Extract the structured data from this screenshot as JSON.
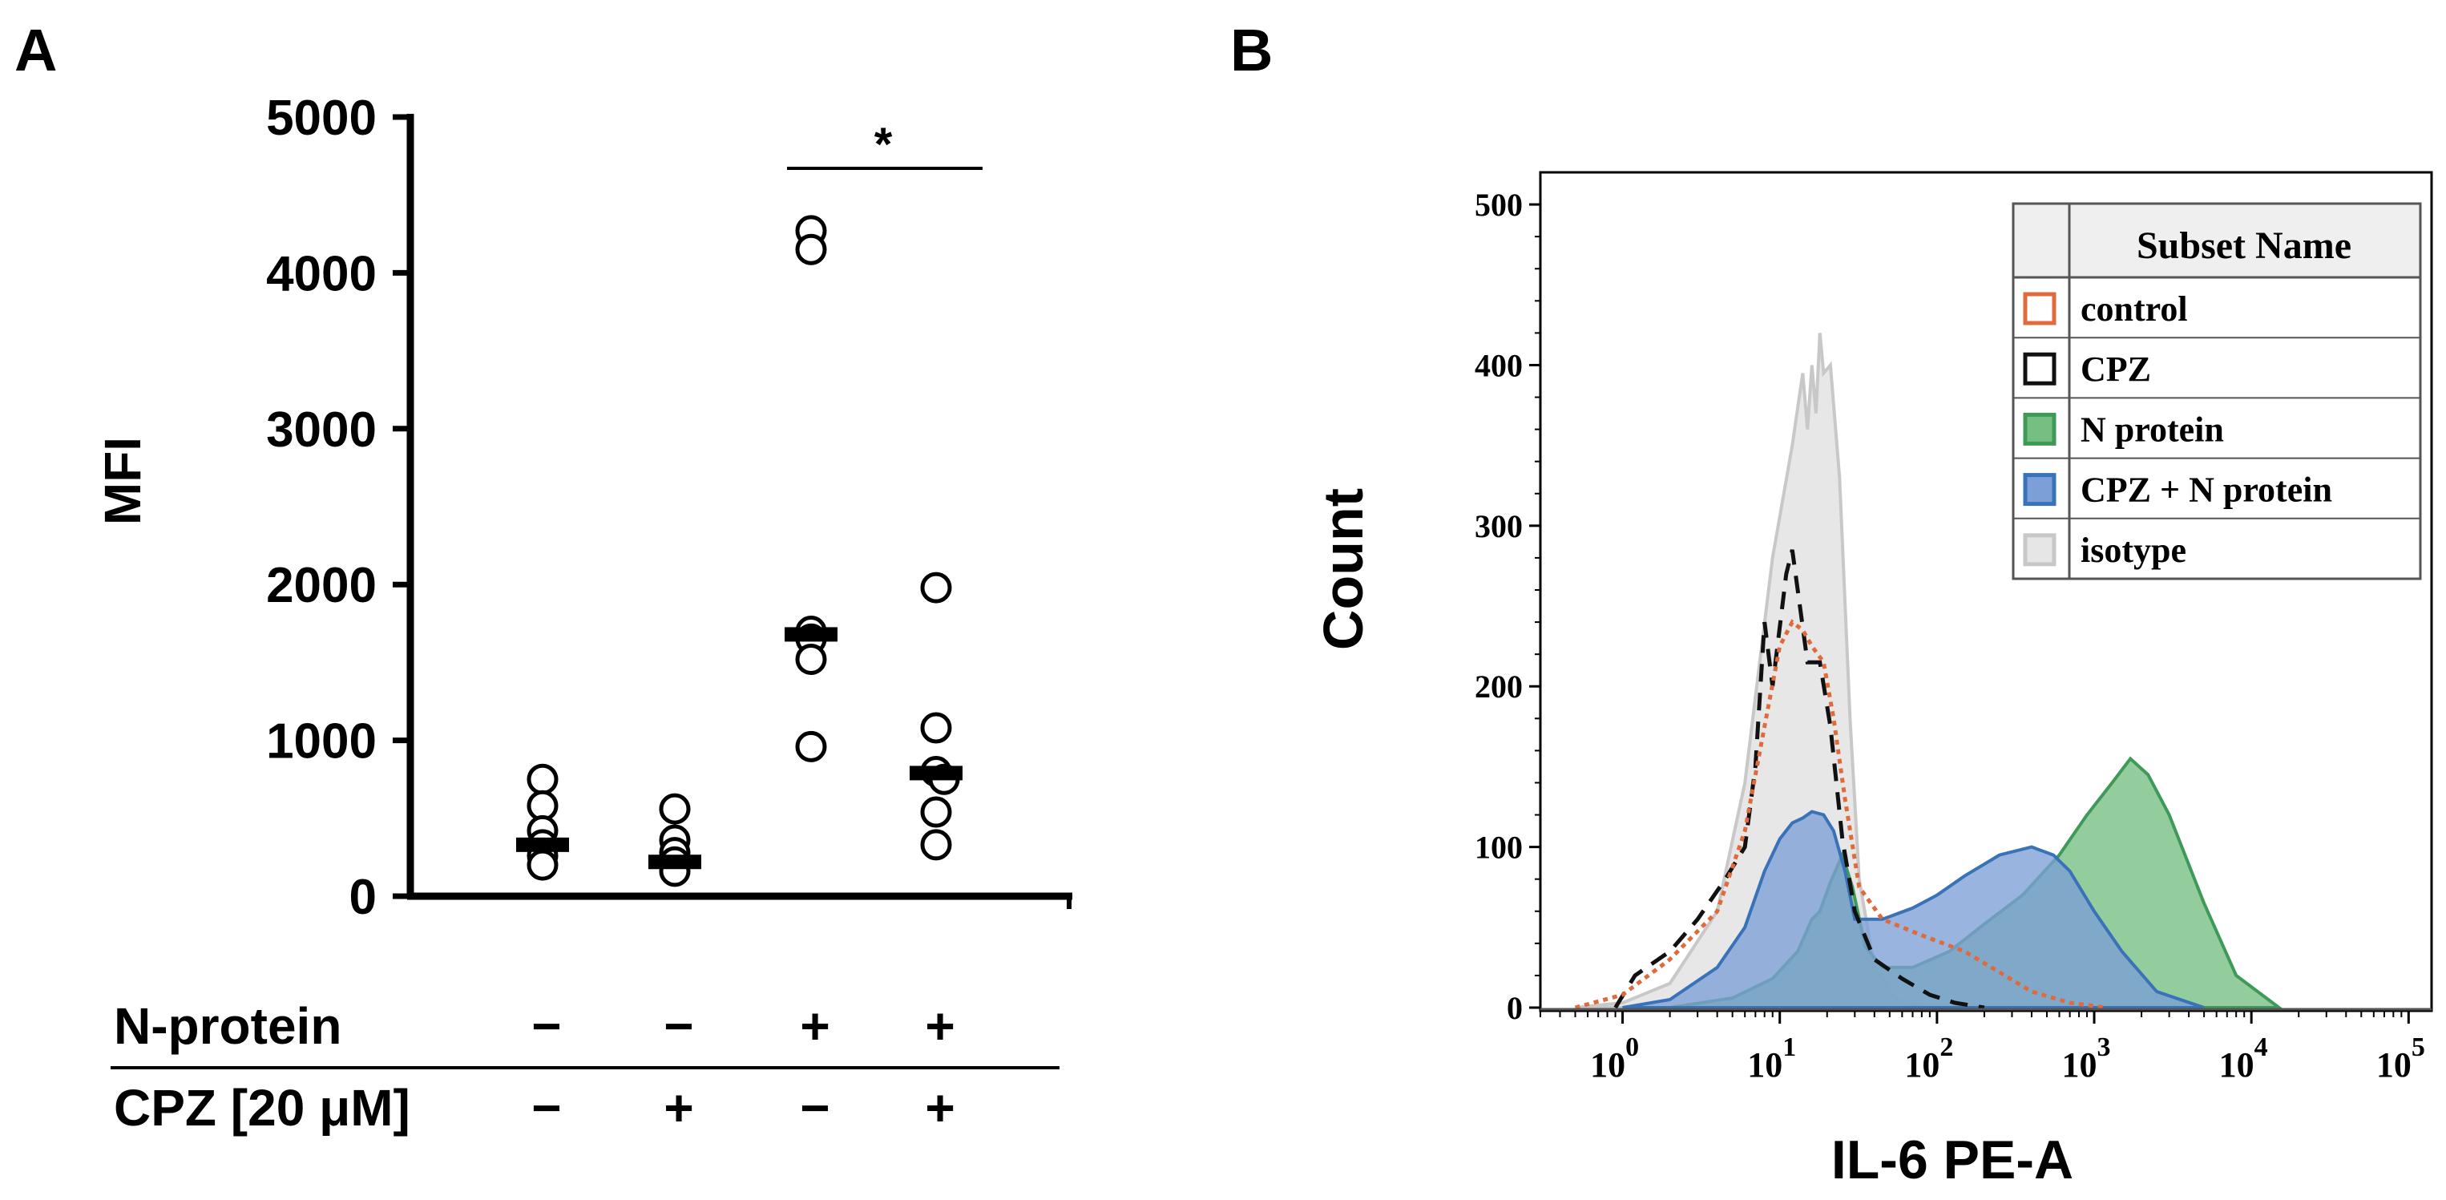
{
  "chart_data": [
    {
      "panel": "A",
      "type": "scatter",
      "ylabel": "MFI",
      "ylim": [
        0,
        5000
      ],
      "yticks": [
        "0",
        "1000",
        "2000",
        "3000",
        "4000",
        "5000"
      ],
      "significance": "*",
      "rows": [
        {
          "label": "N-protein",
          "signs": [
            "−",
            "−",
            "+",
            "+"
          ]
        },
        {
          "label": "CPZ [20 μM]",
          "signs": [
            "−",
            "+",
            "−",
            "+"
          ]
        }
      ],
      "groups": [
        {
          "points": [
            750,
            580,
            420,
            330,
            260,
            200
          ],
          "median": 330
        },
        {
          "points": [
            560,
            360,
            280,
            220,
            160
          ],
          "median": 220
        },
        {
          "points": [
            4270,
            4150,
            1700,
            1650,
            1520,
            960
          ],
          "median": 1680
        },
        {
          "points": [
            1980,
            1080,
            800,
            750,
            540,
            330
          ],
          "median": 790
        }
      ]
    },
    {
      "panel": "B",
      "type": "area",
      "xlabel": "IL-6 PE-A",
      "ylabel": "Count",
      "xscale": "log",
      "xlim": [
        0.3,
        140000
      ],
      "ylim": [
        0,
        520
      ],
      "yticks": [
        "0",
        "100",
        "200",
        "300",
        "400",
        "500"
      ],
      "xticks": [
        {
          "base": "10",
          "exp": "0",
          "value": 1
        },
        {
          "base": "10",
          "exp": "1",
          "value": 10
        },
        {
          "base": "10",
          "exp": "2",
          "value": 100
        },
        {
          "base": "10",
          "exp": "3",
          "value": 1000
        },
        {
          "base": "10",
          "exp": "4",
          "value": 10000
        },
        {
          "base": "10",
          "exp": "5",
          "value": 100000
        }
      ],
      "legend": {
        "header": "Subset Name",
        "position": "top-right",
        "entries": [
          {
            "name": "control",
            "stroke": "#e06a3c",
            "fill": "none"
          },
          {
            "name": "CPZ",
            "stroke": "#111111",
            "fill": "none"
          },
          {
            "name": "N protein",
            "stroke": "#3f9a5a",
            "fill": "#76bf82"
          },
          {
            "name": "CPZ + N protein",
            "stroke": "#3a72b8",
            "fill": "#7b9fd6"
          },
          {
            "name": "isotype",
            "stroke": "#c8c8c8",
            "fill": "#e6e6e6"
          }
        ]
      },
      "series": [
        {
          "name": "isotype",
          "points": [
            [
              0.5,
              0
            ],
            [
              1,
              3
            ],
            [
              2,
              15
            ],
            [
              4,
              60
            ],
            [
              6,
              140
            ],
            [
              9,
              280
            ],
            [
              12,
              350
            ],
            [
              14,
              395
            ],
            [
              15,
              360
            ],
            [
              16,
              400
            ],
            [
              17,
              370
            ],
            [
              18,
              420
            ],
            [
              19,
              395
            ],
            [
              21,
              400
            ],
            [
              24,
              330
            ],
            [
              28,
              180
            ],
            [
              32,
              80
            ],
            [
              40,
              25
            ],
            [
              55,
              5
            ],
            [
              80,
              0
            ]
          ]
        },
        {
          "name": "N protein",
          "points": [
            [
              2,
              0
            ],
            [
              5,
              6
            ],
            [
              9,
              18
            ],
            [
              13,
              35
            ],
            [
              16,
              55
            ],
            [
              18,
              60
            ],
            [
              21,
              78
            ],
            [
              25,
              95
            ],
            [
              29,
              75
            ],
            [
              35,
              38
            ],
            [
              45,
              25
            ],
            [
              70,
              25
            ],
            [
              120,
              35
            ],
            [
              200,
              52
            ],
            [
              350,
              70
            ],
            [
              600,
              95
            ],
            [
              900,
              120
            ],
            [
              1300,
              140
            ],
            [
              1700,
              155
            ],
            [
              2200,
              145
            ],
            [
              3000,
              120
            ],
            [
              5000,
              65
            ],
            [
              8000,
              20
            ],
            [
              15000,
              0
            ]
          ]
        },
        {
          "name": "CPZ + N protein",
          "points": [
            [
              1,
              0
            ],
            [
              2,
              5
            ],
            [
              4,
              25
            ],
            [
              6,
              50
            ],
            [
              8,
              85
            ],
            [
              10,
              105
            ],
            [
              12,
              115
            ],
            [
              14,
              118
            ],
            [
              16,
              122
            ],
            [
              19,
              120
            ],
            [
              22,
              110
            ],
            [
              26,
              85
            ],
            [
              30,
              55
            ],
            [
              45,
              55
            ],
            [
              70,
              62
            ],
            [
              100,
              70
            ],
            [
              150,
              82
            ],
            [
              250,
              95
            ],
            [
              400,
              100
            ],
            [
              550,
              95
            ],
            [
              700,
              85
            ],
            [
              1000,
              60
            ],
            [
              1500,
              35
            ],
            [
              2500,
              10
            ],
            [
              5000,
              0
            ]
          ]
        },
        {
          "name": "CPZ",
          "points": [
            [
              0.9,
              0
            ],
            [
              1.2,
              20
            ],
            [
              2,
              35
            ],
            [
              3,
              55
            ],
            [
              4.5,
              80
            ],
            [
              6,
              100
            ],
            [
              7,
              150
            ],
            [
              8,
              240
            ],
            [
              9,
              200
            ],
            [
              11,
              270
            ],
            [
              12,
              285
            ],
            [
              13,
              260
            ],
            [
              15,
              215
            ],
            [
              18,
              215
            ],
            [
              21,
              175
            ],
            [
              25,
              105
            ],
            [
              30,
              60
            ],
            [
              40,
              30
            ],
            [
              60,
              18
            ],
            [
              90,
              8
            ],
            [
              130,
              3
            ],
            [
              200,
              0
            ]
          ]
        },
        {
          "name": "control",
          "points": [
            [
              0.5,
              0
            ],
            [
              1,
              8
            ],
            [
              2,
              30
            ],
            [
              4,
              60
            ],
            [
              6,
              110
            ],
            [
              8,
              175
            ],
            [
              10,
              225
            ],
            [
              12,
              240
            ],
            [
              14,
              235
            ],
            [
              16,
              225
            ],
            [
              19,
              215
            ],
            [
              22,
              180
            ],
            [
              26,
              130
            ],
            [
              32,
              75
            ],
            [
              45,
              55
            ],
            [
              80,
              45
            ],
            [
              150,
              35
            ],
            [
              250,
              22
            ],
            [
              400,
              10
            ],
            [
              700,
              3
            ],
            [
              1200,
              0
            ]
          ]
        }
      ]
    }
  ]
}
